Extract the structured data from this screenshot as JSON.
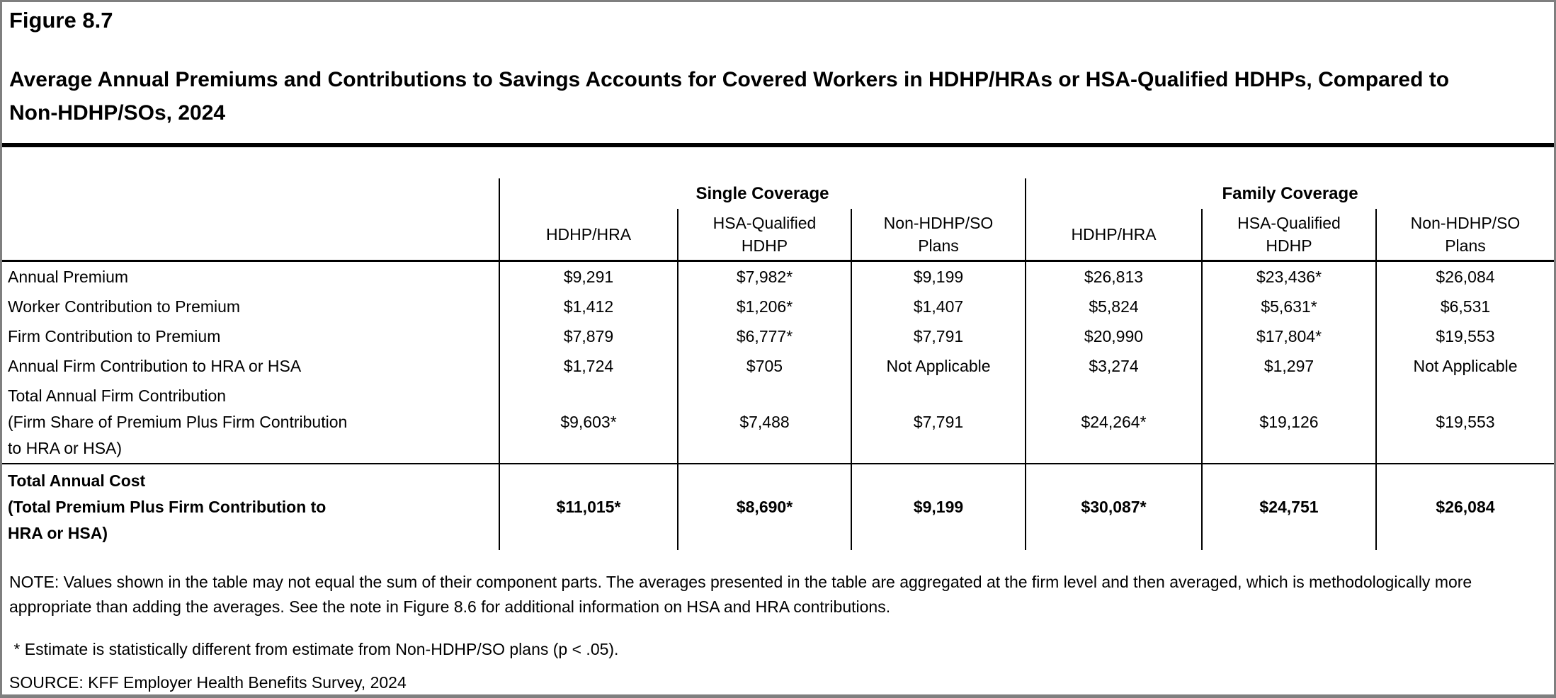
{
  "figure": {
    "label": "Figure 8.7",
    "title": "Average Annual Premiums and Contributions to Savings Accounts for Covered Workers in HDHP/HRAs or HSA-Qualified HDHPs, Compared to Non-HDHP/SOs, 2024"
  },
  "table": {
    "groups": [
      {
        "label": "Single Coverage"
      },
      {
        "label": "Family Coverage"
      }
    ],
    "columns": [
      "HDHP/HRA",
      "HSA-Qualified\nHDHP",
      "Non-HDHP/SO\nPlans",
      "HDHP/HRA",
      "HSA-Qualified\nHDHP",
      "Non-HDHP/SO\nPlans"
    ],
    "rows": [
      {
        "label": "Annual Premium",
        "values": [
          "$9,291",
          "$7,982*",
          "$9,199",
          "$26,813",
          "$23,436*",
          "$26,084"
        ]
      },
      {
        "label": "Worker Contribution to Premium",
        "values": [
          "$1,412",
          "$1,206*",
          "$1,407",
          "$5,824",
          "$5,631*",
          "$6,531"
        ]
      },
      {
        "label": "Firm Contribution to Premium",
        "values": [
          "$7,879",
          "$6,777*",
          "$7,791",
          "$20,990",
          "$17,804*",
          "$19,553"
        ]
      },
      {
        "label": "Annual Firm Contribution to HRA or HSA",
        "values": [
          "$1,724",
          "$705",
          "Not Applicable",
          "$3,274",
          "$1,297",
          "Not Applicable"
        ]
      },
      {
        "label": "Total Annual Firm Contribution\n (Firm Share of Premium Plus Firm Contribution\n to HRA or HSA)",
        "values": [
          "$9,603*",
          "$7,488",
          "$7,791",
          "$24,264*",
          "$19,126",
          "$19,553"
        ]
      },
      {
        "label": "Total Annual Cost\n (Total Premium Plus Firm Contribution to\n HRA or HSA)",
        "values": [
          "$11,015*",
          "$8,690*",
          "$9,199",
          "$30,087*",
          "$24,751",
          "$26,084"
        ]
      }
    ]
  },
  "notes": {
    "note": "NOTE: Values shown in the table may not equal the sum of their component parts. The averages presented in the table are aggregated at the firm level and then averaged, which is methodologically more appropriate than adding the averages. See the note in Figure 8.6 for additional information on HSA and HRA contributions.",
    "footnote": " * Estimate is statistically different from estimate from Non-HDHP/SO plans (p < .05).",
    "source": "SOURCE: KFF Employer Health Benefits Survey, 2024"
  },
  "colors": {
    "outer_border": "#7f7f7f",
    "table_lines": "#000000",
    "text": "#000000",
    "background": "#ffffff"
  }
}
